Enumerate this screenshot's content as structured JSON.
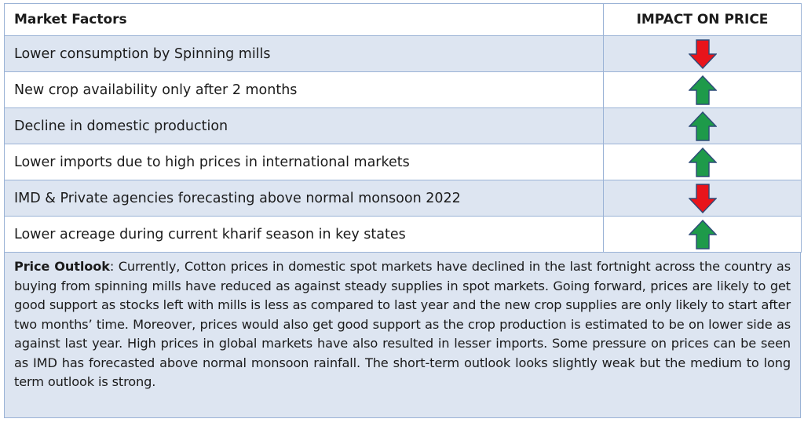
{
  "table": {
    "header": {
      "factors": "Market Factors",
      "impact": "IMPACT ON PRICE"
    },
    "rows": [
      {
        "factor": "Lower consumption by Spinning mills",
        "impact": "down",
        "arrow_color": "#e8141b"
      },
      {
        "factor": "New crop availability only after 2 months",
        "impact": "up",
        "arrow_color": "#1e9a4a"
      },
      {
        "factor": "Decline in domestic production",
        "impact": "up",
        "arrow_color": "#1e9a4a"
      },
      {
        "factor": "Lower imports due to high prices in international markets",
        "impact": "up",
        "arrow_color": "#1e9a4a"
      },
      {
        "factor": "IMD & Private agencies forecasting above normal monsoon 2022",
        "impact": "down",
        "arrow_color": "#e8141b"
      },
      {
        "factor": "Lower acreage during current kharif season in key states",
        "impact": "up",
        "arrow_color": "#1e9a4a"
      }
    ]
  },
  "outlook": {
    "label": "Price Outlook",
    "text": ": Currently, Cotton prices in domestic spot markets have declined in the last fortnight across the country as buying from spinning mills have reduced as against steady supplies in spot markets. Going forward, prices are likely to get good support as stocks left with mills is less as compared to last year and the new crop supplies are only likely to start after two months’ time. Moreover, prices would also get good support as the crop production is estimated to be on lower side as against last year. High prices in global markets have also resulted in lesser imports. Some pressure on prices can be seen as IMD has forecasted above normal monsoon rainfall. The short-term outlook looks slightly weak but the medium to long term outlook is strong."
  },
  "colors": {
    "up": "#1e9a4a",
    "down": "#e8141b",
    "border": "#9bb3d6",
    "shade": "#dde5f1"
  }
}
